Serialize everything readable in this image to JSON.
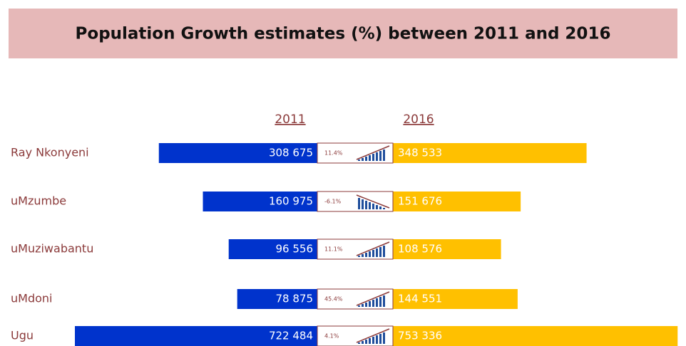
{
  "chart_data": {
    "type": "butterfly-bar",
    "title": "Population Growth estimates (%) between 2011 and 2016",
    "categories": [
      "Ray Nkonyeni",
      "uMzumbe",
      "uMuziwabantu",
      "uMdoni",
      "Ugu"
    ],
    "series": [
      {
        "name": "2011",
        "color": "#0033cc",
        "values": [
          308675,
          160975,
          96556,
          78875,
          722484
        ],
        "value_labels": [
          "308 675",
          "160 975",
          "96 556",
          "78 875",
          "722 484"
        ]
      },
      {
        "name": "2016",
        "color": "#ffc000",
        "values": [
          348533,
          151676,
          108576,
          144551,
          753336
        ],
        "value_labels": [
          "348 533",
          "151 676",
          "108 576",
          "144 551",
          "753 336"
        ]
      }
    ],
    "growth": {
      "values": [
        11.4,
        -6.1,
        11.1,
        45.4,
        4.1
      ],
      "value_labels": [
        "11.4%",
        "-6.1%",
        "11.1%",
        "45.4%",
        "4.1%"
      ]
    }
  }
}
